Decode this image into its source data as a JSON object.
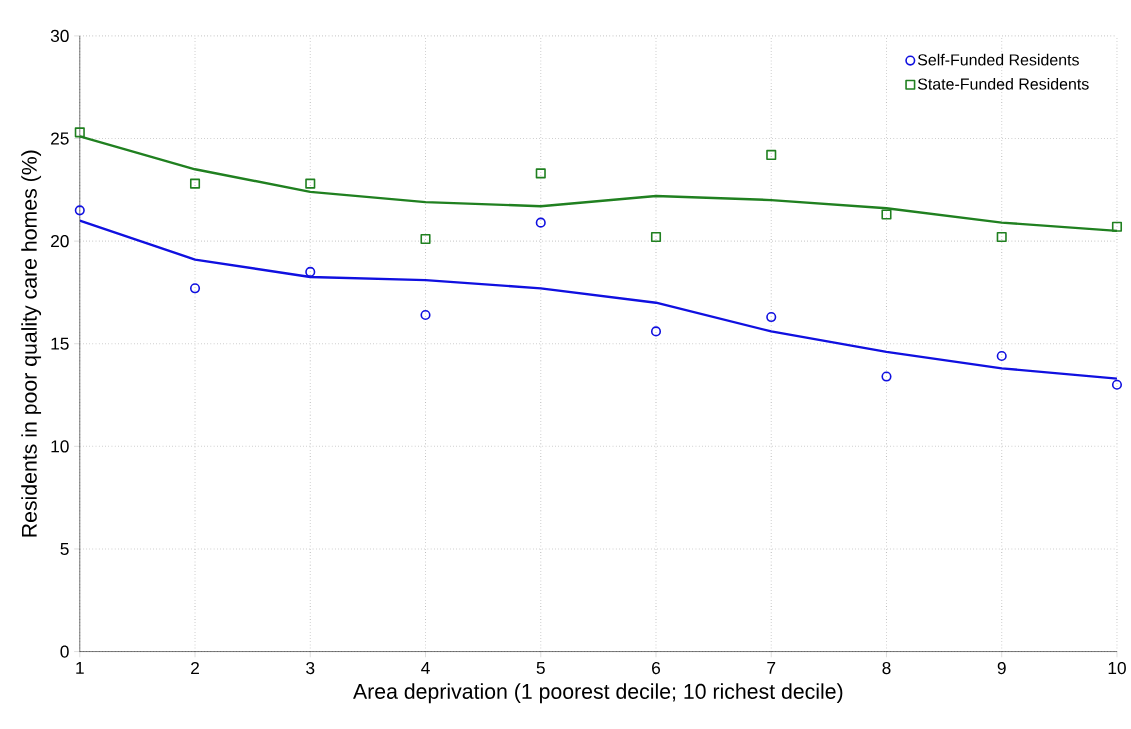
{
  "chart_data": {
    "type": "scatter",
    "xlabel": "Area deprivation (1 poorest decile; 10 richest decile)",
    "ylabel": "Residents in poor quality care homes (%)",
    "x": [
      1,
      2,
      3,
      4,
      5,
      6,
      7,
      8,
      9,
      10
    ],
    "series": [
      {
        "name": "Self-Funded Residents",
        "marker": "circle",
        "color": "#1010e0",
        "values": [
          21.5,
          17.7,
          18.5,
          16.4,
          20.9,
          15.6,
          16.3,
          13.4,
          14.4,
          13.0
        ]
      },
      {
        "name": "State-Funded Residents",
        "marker": "square",
        "color": "#208020",
        "values": [
          25.3,
          22.8,
          22.8,
          20.1,
          23.3,
          20.2,
          24.2,
          21.3,
          20.2,
          20.7
        ]
      },
      {
        "type": "line",
        "marker": "none",
        "line_style": "solid",
        "color": "#1010e0",
        "values": [
          21.0,
          19.1,
          18.25,
          18.1,
          17.7,
          17.0,
          15.6,
          14.6,
          13.8,
          13.3
        ]
      },
      {
        "type": "line",
        "marker": "none",
        "line_style": "solid",
        "color": "#208020",
        "values": [
          25.1,
          23.5,
          22.4,
          21.9,
          21.7,
          22.2,
          22.0,
          21.6,
          20.9,
          20.5
        ]
      }
    ],
    "xlim": [
      1,
      10
    ],
    "ylim": [
      0,
      30
    ],
    "xticks": [
      1,
      2,
      3,
      4,
      5,
      6,
      7,
      8,
      9,
      10
    ],
    "yticks": [
      0,
      5,
      10,
      15,
      20,
      25,
      30
    ],
    "grid": true,
    "legend": "top right"
  }
}
